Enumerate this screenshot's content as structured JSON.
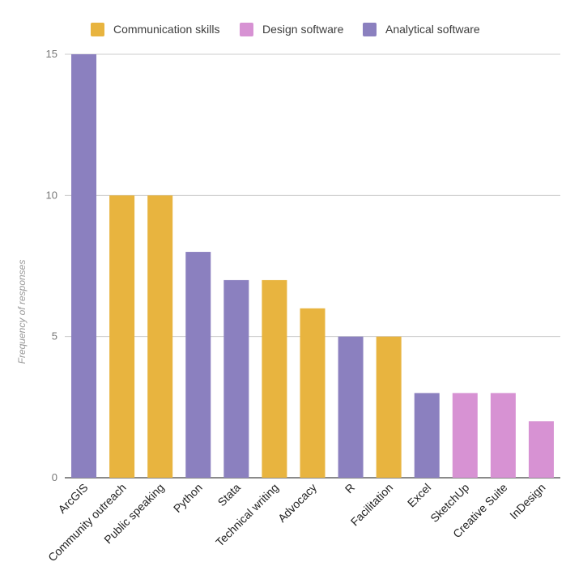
{
  "chart_data": {
    "type": "bar",
    "title": "",
    "xlabel": "",
    "ylabel": "Frequency of responses",
    "ylim": [
      0,
      15
    ],
    "yticks": [
      0,
      5,
      10,
      15
    ],
    "grid": true,
    "legend_position": "top",
    "legend": [
      {
        "name": "Communication skills",
        "color": "#E8B43F"
      },
      {
        "name": "Design software",
        "color": "#D792D3"
      },
      {
        "name": "Analytical software",
        "color": "#8B80BF"
      }
    ],
    "categories": [
      "ArcGIS",
      "Community outreach",
      "Public speaking",
      "Python",
      "Stata",
      "Technical writing",
      "Advocacy",
      "R",
      "Facilitation",
      "Excel",
      "SketchUp",
      "Creative Suite",
      "InDesign"
    ],
    "values": [
      15,
      10,
      10,
      8,
      7,
      7,
      6,
      5,
      5,
      3,
      3,
      3,
      2
    ],
    "groups": [
      "Analytical software",
      "Communication skills",
      "Communication skills",
      "Analytical software",
      "Analytical software",
      "Communication skills",
      "Communication skills",
      "Analytical software",
      "Communication skills",
      "Analytical software",
      "Design software",
      "Design software",
      "Design software"
    ]
  }
}
